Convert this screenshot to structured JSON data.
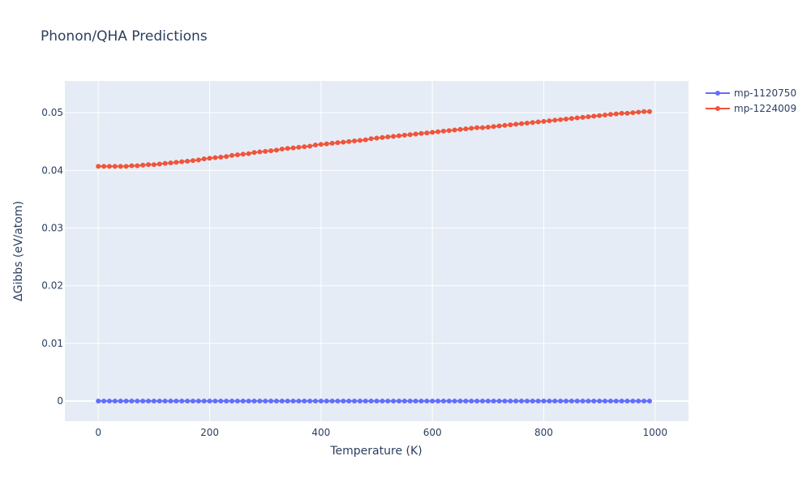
{
  "chart_data": {
    "type": "line",
    "title": "Phonon/QHA Predictions",
    "xlabel": "Temperature (K)",
    "ylabel": "ΔGibbs (eV/atom)",
    "xlim": [
      -60,
      1060
    ],
    "ylim": [
      -0.0035,
      0.0555
    ],
    "x_ticks": [
      0,
      200,
      400,
      600,
      800,
      1000
    ],
    "x_tick_labels": [
      "0",
      "200",
      "400",
      "600",
      "800",
      "1000"
    ],
    "y_ticks": [
      0,
      0.01,
      0.02,
      0.03,
      0.04,
      0.05
    ],
    "y_tick_labels": [
      "0",
      "0.01",
      "0.02",
      "0.03",
      "0.04",
      "0.05"
    ],
    "grid": true,
    "legend_position": "top-right",
    "colors": {
      "plot_background": "#e5ecf6",
      "grid": "#ffffff",
      "text": "#2a3f5f"
    },
    "x_sampling": {
      "start": 0,
      "stop": 990,
      "step": 10
    },
    "series": [
      {
        "name": "mp-1120750",
        "color": "#636efa",
        "mode": "lines+markers",
        "values": [
          0,
          0,
          0,
          0,
          0,
          0,
          0,
          0,
          0,
          0,
          0,
          0,
          0,
          0,
          0,
          0,
          0,
          0,
          0,
          0,
          0,
          0,
          0,
          0,
          0,
          0,
          0,
          0,
          0,
          0,
          0,
          0,
          0,
          0,
          0,
          0,
          0,
          0,
          0,
          0,
          0,
          0,
          0,
          0,
          0,
          0,
          0,
          0,
          0,
          0,
          0,
          0,
          0,
          0,
          0,
          0,
          0,
          0,
          0,
          0,
          0,
          0,
          0,
          0,
          0,
          0,
          0,
          0,
          0,
          0,
          0,
          0,
          0,
          0,
          0,
          0,
          0,
          0,
          0,
          0,
          0,
          0,
          0,
          0,
          0,
          0,
          0,
          0,
          0,
          0,
          0,
          0,
          0,
          0,
          0,
          0,
          0,
          0,
          0,
          0
        ]
      },
      {
        "name": "mp-1224009",
        "color": "#ef553b",
        "mode": "lines+markers",
        "values": [
          0.0407,
          0.0407,
          0.0407,
          0.0407,
          0.0407,
          0.0407,
          0.0408,
          0.0408,
          0.0409,
          0.041,
          0.041,
          0.0411,
          0.0412,
          0.0413,
          0.0414,
          0.0415,
          0.0416,
          0.0417,
          0.0418,
          0.042,
          0.0421,
          0.0422,
          0.0423,
          0.0424,
          0.0426,
          0.0427,
          0.0428,
          0.0429,
          0.0431,
          0.0432,
          0.0433,
          0.0434,
          0.0435,
          0.0437,
          0.0438,
          0.0439,
          0.044,
          0.0441,
          0.0442,
          0.0444,
          0.0445,
          0.0446,
          0.0447,
          0.0448,
          0.0449,
          0.045,
          0.0451,
          0.0452,
          0.0453,
          0.0455,
          0.0456,
          0.0457,
          0.0458,
          0.0459,
          0.046,
          0.0461,
          0.0462,
          0.0463,
          0.0464,
          0.0465,
          0.0466,
          0.0467,
          0.0468,
          0.0469,
          0.047,
          0.0471,
          0.0472,
          0.0473,
          0.0474,
          0.0474,
          0.0475,
          0.0476,
          0.0477,
          0.0478,
          0.0479,
          0.048,
          0.0481,
          0.0482,
          0.0483,
          0.0484,
          0.0485,
          0.0486,
          0.0487,
          0.0488,
          0.0489,
          0.049,
          0.0491,
          0.0492,
          0.0493,
          0.0494,
          0.0495,
          0.0496,
          0.0497,
          0.0498,
          0.0499,
          0.0499,
          0.05,
          0.0501,
          0.0502,
          0.0502
        ]
      }
    ]
  }
}
